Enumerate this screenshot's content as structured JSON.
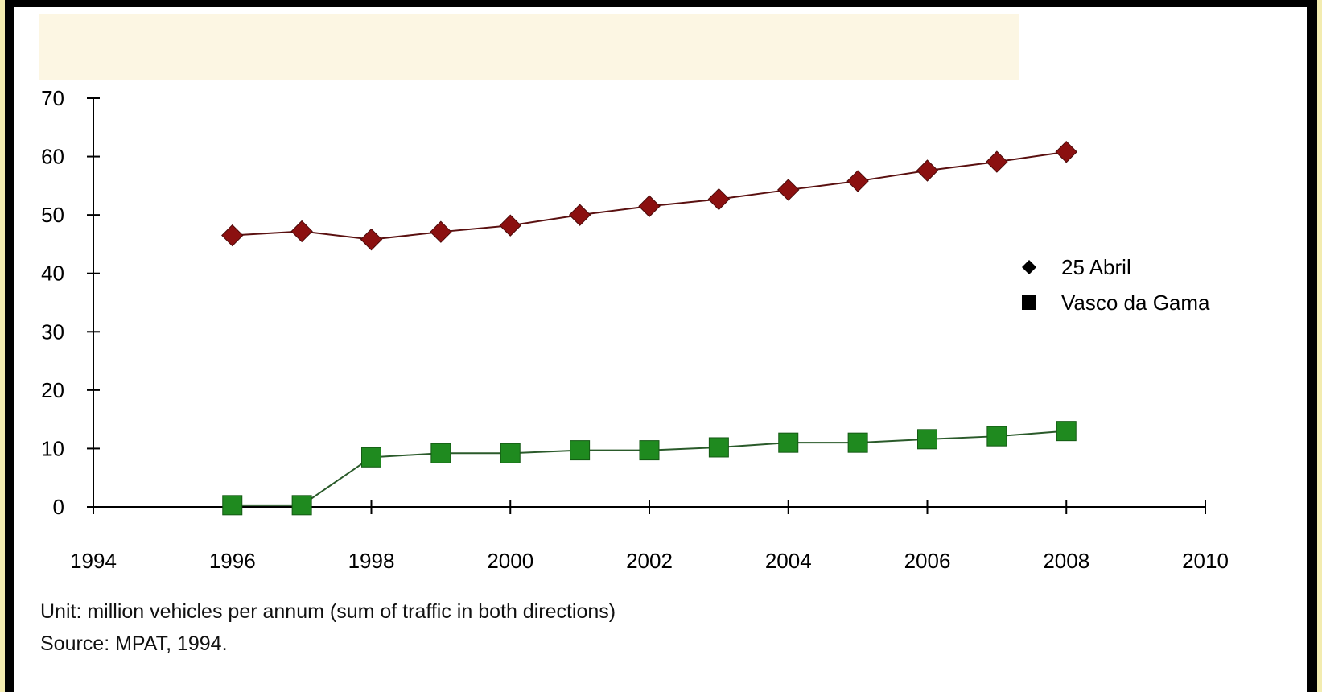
{
  "chart_data": {
    "type": "line",
    "title": "",
    "xlabel": "",
    "ylabel": "",
    "xlim": [
      1994,
      2010
    ],
    "ylim": [
      0,
      70
    ],
    "x_ticks": [
      1994,
      1996,
      1998,
      2000,
      2002,
      2004,
      2006,
      2008,
      2010
    ],
    "y_ticks": [
      0,
      10,
      20,
      30,
      40,
      50,
      60,
      70
    ],
    "grid": false,
    "legend": "right",
    "series": [
      {
        "name": "25 Abril",
        "marker": "diamond",
        "color": "#8b1010",
        "line_color": "#5a1010",
        "x": [
          1996,
          1997,
          1998,
          1999,
          2000,
          2001,
          2002,
          2003,
          2004,
          2005,
          2006,
          2007,
          2008
        ],
        "values": [
          46.5,
          47.2,
          45.8,
          47.1,
          48.2,
          50.0,
          51.5,
          52.7,
          54.3,
          55.8,
          57.6,
          59.1,
          60.8
        ]
      },
      {
        "name": "Vasco da Gama",
        "marker": "square",
        "color": "#1f8a1f",
        "line_color": "#2a5a2a",
        "x": [
          1996,
          1997,
          1998,
          1999,
          2000,
          2001,
          2002,
          2003,
          2004,
          2005,
          2006,
          2007,
          2008
        ],
        "values": [
          0.3,
          0.3,
          8.5,
          9.2,
          9.2,
          9.7,
          9.7,
          10.2,
          11.0,
          11.0,
          11.6,
          12.1,
          13.0
        ]
      }
    ]
  },
  "notes": {
    "unit": "Unit: million vehicles per annum (sum of traffic in both directions)",
    "source": "Source: MPAT, 1994."
  }
}
